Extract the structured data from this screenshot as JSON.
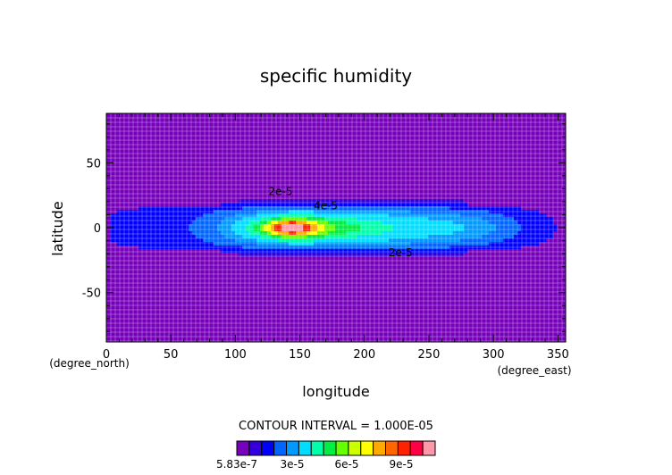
{
  "chart_data": {
    "type": "heatmap",
    "title": "specific humidity",
    "xlabel": "longitude",
    "ylabel": "latitude",
    "x_unit": "(degree_east)",
    "y_unit": "(degree_north)",
    "xlim": [
      0,
      356
    ],
    "ylim": [
      -88,
      88
    ],
    "x_ticks": [
      0,
      50,
      100,
      150,
      200,
      250,
      300,
      350
    ],
    "y_ticks": [
      50,
      0,
      -50
    ],
    "contour_interval_text": "CONTOUR INTERVAL = 1.000E-05",
    "contour_labels": [
      {
        "text": "2e-5",
        "x": 135,
        "y": 25
      },
      {
        "text": "4e-5",
        "x": 170,
        "y": 14
      },
      {
        "text": "2e-5",
        "x": 228,
        "y": -22
      }
    ],
    "colorbar": {
      "min_label": "5.83e-7",
      "tick_labels": [
        "3e-5",
        "6e-5",
        "9e-5"
      ],
      "colors": [
        "#7700bb",
        "#3300dd",
        "#0000ff",
        "#0066ff",
        "#0099ff",
        "#00ddff",
        "#00ffaa",
        "#00ee44",
        "#66ff00",
        "#ccff00",
        "#ffff00",
        "#ffaa00",
        "#ff6600",
        "#ff2200",
        "#ff0044",
        "#ff99aa"
      ]
    },
    "levels": [
      {
        "value": 5e-06,
        "color": "#3300dd"
      },
      {
        "value": 1e-05,
        "color": "#0000ff"
      },
      {
        "value": 1.5e-05,
        "color": "#0066ff"
      },
      {
        "value": 2e-05,
        "color": "#0099ff"
      },
      {
        "value": 2.5e-05,
        "color": "#00ddff"
      },
      {
        "value": 3.5e-05,
        "color": "#00ffaa"
      },
      {
        "value": 4.5e-05,
        "color": "#00ee44"
      },
      {
        "value": 5.5e-05,
        "color": "#66ff00"
      },
      {
        "value": 6.5e-05,
        "color": "#ffff00"
      },
      {
        "value": 7.5e-05,
        "color": "#ffaa00"
      },
      {
        "value": 8.5e-05,
        "color": "#ff2200"
      },
      {
        "value": 9.5e-05,
        "color": "#ff99aa"
      }
    ],
    "background_color": "#7700bb"
  }
}
